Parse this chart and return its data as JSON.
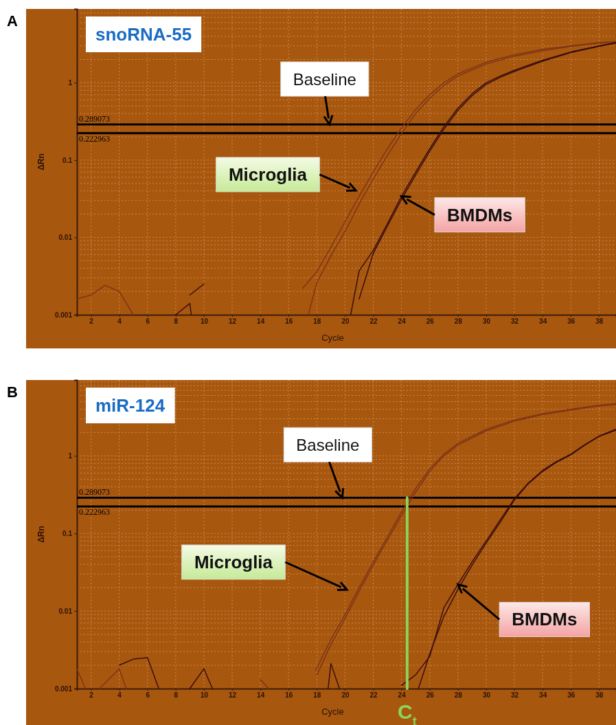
{
  "chart_data": [
    {
      "type": "line",
      "title": "snoRNA-55",
      "xlabel": "Cycle",
      "ylabel": "ΔRn",
      "log": true,
      "grid": true,
      "xlim": [
        1,
        39.2
      ],
      "xticks": [
        2,
        4,
        6,
        8,
        10,
        12,
        14,
        16,
        18,
        20,
        22,
        24,
        26,
        28,
        30,
        32,
        34,
        36,
        38
      ],
      "ylim": [
        0.001,
        9
      ],
      "yticks": [
        0.001,
        0.01,
        0.1,
        1
      ],
      "ref_lines": [
        {
          "axis": "y",
          "value": 0.289073,
          "label": "0.289073",
          "color": "#000000"
        },
        {
          "axis": "y",
          "value": 0.222963,
          "label": "0.222963",
          "color": "#000000"
        }
      ],
      "annotations": [
        "A",
        {
          "text": "Baseline",
          "x": 18.9,
          "y": 0.289073
        },
        "Microglia",
        {
          "text": "BMDMs",
          "x": 24,
          "y": 0.034
        }
      ],
      "series": [
        {
          "color": "#7e3516",
          "x": [
            17,
            18,
            19,
            20,
            21,
            22,
            23,
            24,
            25,
            26,
            27,
            28,
            30,
            32,
            34,
            36,
            38,
            39.2
          ],
          "values": [
            0.0022,
            0.0036,
            0.0075,
            0.016,
            0.034,
            0.07,
            0.14,
            0.26,
            0.45,
            0.7,
            1.0,
            1.3,
            1.85,
            2.3,
            2.7,
            3.0,
            3.3,
            3.4
          ]
        },
        {
          "color": "#7e3516",
          "x": [
            17.4,
            18,
            19,
            20,
            21,
            22,
            23,
            24,
            25,
            26,
            27,
            28,
            30,
            32,
            34,
            36,
            38,
            39.2
          ],
          "values": [
            0.001,
            0.0026,
            0.0058,
            0.012,
            0.027,
            0.057,
            0.115,
            0.22,
            0.4,
            0.63,
            0.92,
            1.22,
            1.75,
            2.2,
            2.6,
            2.95,
            3.25,
            3.35
          ]
        },
        {
          "color": "#3a0e0e",
          "x": [
            20.4,
            21,
            22,
            23,
            24,
            25,
            26,
            27,
            28,
            29,
            30,
            31,
            32,
            34,
            36,
            38,
            39.2
          ],
          "values": [
            0.001,
            0.0037,
            0.0068,
            0.015,
            0.034,
            0.07,
            0.14,
            0.27,
            0.47,
            0.72,
            1.0,
            1.22,
            1.45,
            1.95,
            2.5,
            3.0,
            3.3
          ]
        },
        {
          "color": "#3a0e0e",
          "x": [
            21,
            22,
            23,
            24,
            25,
            26,
            27,
            28,
            29,
            30,
            31,
            32,
            34,
            36,
            38,
            39.2
          ],
          "values": [
            0.0016,
            0.0062,
            0.014,
            0.031,
            0.064,
            0.13,
            0.25,
            0.44,
            0.68,
            0.95,
            1.18,
            1.4,
            1.9,
            2.45,
            2.95,
            3.25
          ]
        },
        {
          "color": "#7e3516",
          "x": [
            1,
            2,
            3,
            4,
            5
          ],
          "values": [
            0.0016,
            0.0018,
            0.0024,
            0.002,
            0.001
          ]
        },
        {
          "color": "#3a0e0e",
          "x": [
            8,
            9,
            9.1
          ],
          "values": [
            0.001,
            0.0014,
            0.001
          ]
        },
        {
          "color": "#3a0e0e",
          "x": [
            9,
            10
          ],
          "values": [
            0.0018,
            0.0025
          ]
        }
      ]
    },
    {
      "type": "line",
      "title": "miR-124",
      "xlabel": "Cycle",
      "ylabel": "ΔRn",
      "log": true,
      "grid": true,
      "xlim": [
        1,
        39.2
      ],
      "xticks": [
        2,
        4,
        6,
        8,
        10,
        12,
        14,
        16,
        18,
        20,
        22,
        24,
        26,
        28,
        30,
        32,
        34,
        36,
        38
      ],
      "ylim": [
        0.001,
        9.5
      ],
      "yticks": [
        0.001,
        0.01,
        0.1,
        1
      ],
      "ref_lines": [
        {
          "axis": "y",
          "value": 0.289073,
          "label": "0.289073",
          "color": "#000000"
        },
        {
          "axis": "y",
          "value": 0.222963,
          "label": "0.222963",
          "color": "#000000"
        }
      ],
      "annotations": [
        "B",
        {
          "text": "Baseline",
          "x": 19.8,
          "y": 0.289073
        },
        "Microglia",
        {
          "text": "BMDMs",
          "x": 28,
          "y": 0.022
        },
        {
          "text": "C$_{t}$",
          "x": 24.4,
          "y": 0.001
        }
      ],
      "series": [
        {
          "color": "#7e3516",
          "x": [
            17.9,
            19,
            20,
            21,
            22,
            23,
            24,
            25,
            26,
            27,
            28,
            30,
            32,
            34,
            36,
            38,
            39.2
          ],
          "values": [
            0.0017,
            0.0043,
            0.009,
            0.02,
            0.043,
            0.09,
            0.19,
            0.38,
            0.68,
            1.05,
            1.45,
            2.2,
            2.9,
            3.5,
            4.0,
            4.5,
            4.7
          ]
        },
        {
          "color": "#7e3516",
          "x": [
            18,
            19,
            20,
            21,
            22,
            23,
            24,
            25,
            26,
            27,
            28,
            30,
            32,
            34,
            36,
            38,
            39.2
          ],
          "values": [
            0.0015,
            0.0037,
            0.008,
            0.018,
            0.039,
            0.082,
            0.17,
            0.34,
            0.63,
            1.0,
            1.38,
            2.1,
            2.8,
            3.4,
            3.9,
            4.4,
            4.6
          ]
        },
        {
          "color": "#3a0e0e",
          "x": [
            24,
            25,
            26,
            27,
            28,
            29,
            30,
            31,
            32,
            33,
            34,
            35,
            36,
            37,
            38,
            39.2
          ],
          "values": [
            0.0011,
            0.0015,
            0.0026,
            0.011,
            0.022,
            0.043,
            0.08,
            0.15,
            0.28,
            0.45,
            0.65,
            0.85,
            1.05,
            1.4,
            1.8,
            2.2
          ]
        },
        {
          "color": "#3a0e0e",
          "x": [
            25.2,
            26,
            27,
            28,
            29,
            30,
            31,
            32,
            33,
            34,
            35,
            36,
            37,
            38,
            39.2
          ],
          "values": [
            0.001,
            0.0028,
            0.0085,
            0.019,
            0.039,
            0.075,
            0.14,
            0.27,
            0.44,
            0.63,
            0.83,
            1.03,
            1.38,
            1.78,
            2.15
          ]
        },
        {
          "color": "#3a0e0e",
          "x": [
            4,
            5,
            6,
            6.8
          ],
          "values": [
            0.002,
            0.0024,
            0.0025,
            0.001
          ]
        },
        {
          "color": "#3a0e0e",
          "x": [
            9,
            10,
            10.6
          ],
          "values": [
            0.001,
            0.0018,
            0.001
          ]
        },
        {
          "color": "#3a0e0e",
          "x": [
            18.8,
            19,
            19.6
          ],
          "values": [
            0.001,
            0.0021,
            0.001
          ]
        },
        {
          "color": "#7e3516",
          "x": [
            1,
            1.6
          ],
          "values": [
            0.0018,
            0.001
          ]
        },
        {
          "color": "#7e3516",
          "x": [
            2.6,
            4,
            4.5
          ],
          "values": [
            0.001,
            0.0018,
            0.001
          ]
        },
        {
          "color": "#7e3516",
          "x": [
            14,
            14.6
          ],
          "values": [
            0.0013,
            0.001
          ]
        },
        {
          "color": "#8ed35a",
          "x": [
            24.4,
            24.4
          ],
          "values": [
            0.001,
            0.289073
          ]
        }
      ]
    }
  ]
}
